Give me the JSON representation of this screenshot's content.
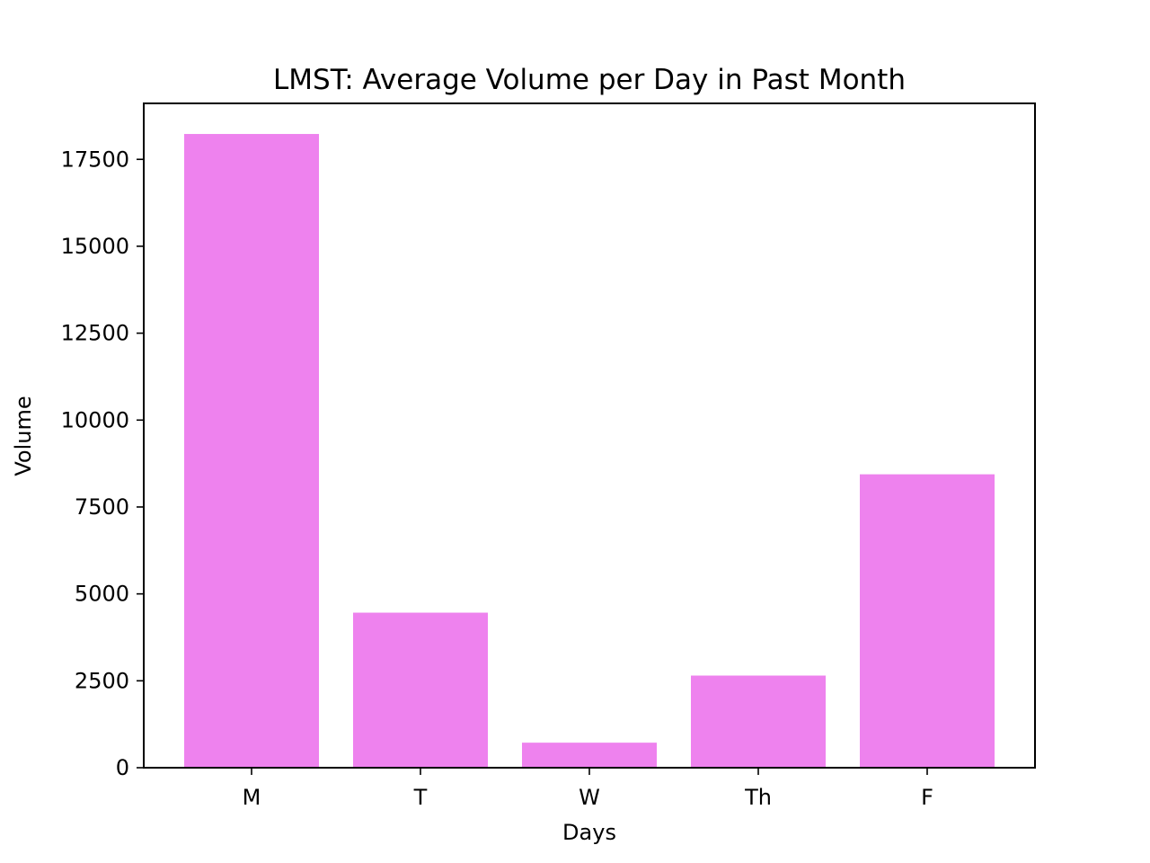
{
  "chart_data": {
    "type": "bar",
    "title": "LMST: Average Volume per Day in Past Month",
    "xlabel": "Days",
    "ylabel": "Volume",
    "categories": [
      "M",
      "T",
      "W",
      "Th",
      "F"
    ],
    "values": [
      18230,
      4460,
      720,
      2650,
      8440
    ],
    "ylim": [
      0,
      19110
    ],
    "yticks": [
      0,
      2500,
      5000,
      7500,
      10000,
      12500,
      15000,
      17500
    ],
    "ytick_labels": [
      "0",
      "2500",
      "5000",
      "7500",
      "10000",
      "12500",
      "15000",
      "17500"
    ],
    "bar_color": "#ee82ee",
    "grid": false,
    "legend": "none"
  }
}
